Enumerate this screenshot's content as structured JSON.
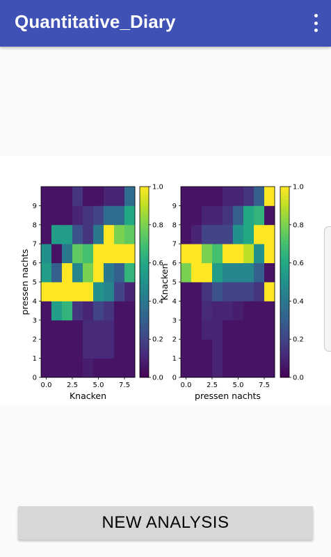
{
  "app_bar": {
    "title": "Quantitative_Diary",
    "menu_icon": "more-vert-icon",
    "color": "#3f51b5"
  },
  "bottom_button": {
    "label": "NEW ANALYSIS"
  },
  "chart_data": [
    {
      "type": "heatmap",
      "colormap": "viridis",
      "xlabel": "Knacken",
      "ylabel": "pressen nachts",
      "x_ticks": [
        "0.0",
        "2.5",
        "5.0",
        "7.5"
      ],
      "y_ticks": [
        "0",
        "1",
        "2",
        "3",
        "4",
        "5",
        "6",
        "7",
        "8",
        "9"
      ],
      "colorbar_ticks": [
        "0.0",
        "0.2",
        "0.4",
        "0.6",
        "0.8",
        "1.0"
      ],
      "vmin": 0,
      "vmax": 1,
      "values": [
        [
          0.05,
          0.05,
          0.05,
          0.05,
          0.08,
          0.05,
          0.05,
          0.05,
          0.05
        ],
        [
          0.05,
          0.05,
          0.05,
          0.05,
          0.12,
          0.12,
          0.12,
          0.05,
          0.05
        ],
        [
          0.05,
          0.05,
          0.05,
          0.05,
          0.12,
          0.12,
          0.12,
          0.05,
          0.05
        ],
        [
          0.05,
          0.55,
          0.65,
          0.15,
          0.1,
          0.2,
          0.15,
          0.05,
          0.05
        ],
        [
          1.0,
          1.0,
          1.0,
          1.0,
          1.0,
          0.5,
          0.45,
          0.2,
          0.1
        ],
        [
          0.55,
          0.3,
          1.0,
          0.45,
          0.8,
          1.0,
          0.4,
          0.3,
          0.65
        ],
        [
          0.5,
          0.05,
          0.4,
          0.75,
          0.7,
          1.0,
          1.0,
          1.0,
          1.0
        ],
        [
          0.05,
          0.55,
          0.55,
          0.25,
          0.15,
          0.4,
          1.0,
          0.8,
          0.75
        ],
        [
          0.05,
          0.05,
          0.05,
          0.1,
          0.15,
          0.2,
          0.35,
          0.35,
          0.6
        ],
        [
          0.05,
          0.05,
          0.05,
          0.15,
          0.05,
          0.05,
          0.1,
          0.1,
          0.35
        ]
      ]
    },
    {
      "type": "heatmap",
      "colormap": "viridis",
      "xlabel": "pressen nachts",
      "ylabel": "Knacken",
      "x_ticks": [
        "0.0",
        "2.5",
        "5.0",
        "7.5"
      ],
      "y_ticks": [
        "0",
        "1",
        "2",
        "3",
        "4",
        "5",
        "6",
        "7",
        "8",
        "9"
      ],
      "colorbar_ticks": [
        "0.0",
        "0.2",
        "0.4",
        "0.6",
        "0.8",
        "1.0"
      ],
      "vmin": 0,
      "vmax": 1,
      "values": [
        [
          0.05,
          0.05,
          0.05,
          0.1,
          0.05,
          0.05,
          0.05,
          0.05,
          0.05
        ],
        [
          0.05,
          0.05,
          0.05,
          0.1,
          0.05,
          0.05,
          0.05,
          0.05,
          0.05
        ],
        [
          0.05,
          0.05,
          0.1,
          0.1,
          0.05,
          0.05,
          0.05,
          0.05,
          0.05
        ],
        [
          0.05,
          0.05,
          0.12,
          0.1,
          0.1,
          0.08,
          0.05,
          0.05,
          0.05
        ],
        [
          0.05,
          0.05,
          0.15,
          0.25,
          0.2,
          0.2,
          0.2,
          0.15,
          1.0
        ],
        [
          0.8,
          1.0,
          1.0,
          0.55,
          0.45,
          0.45,
          0.45,
          0.3,
          0.05
        ],
        [
          1.0,
          1.0,
          0.8,
          0.7,
          1.0,
          1.0,
          0.9,
          0.5,
          1.0
        ],
        [
          0.05,
          0.1,
          0.2,
          0.2,
          0.2,
          0.5,
          0.6,
          1.0,
          1.0
        ],
        [
          0.05,
          0.05,
          0.1,
          0.1,
          0.15,
          0.3,
          0.6,
          0.65,
          0.05
        ],
        [
          0.05,
          0.05,
          0.05,
          0.05,
          0.1,
          0.1,
          0.15,
          0.3,
          1.0
        ]
      ]
    }
  ]
}
